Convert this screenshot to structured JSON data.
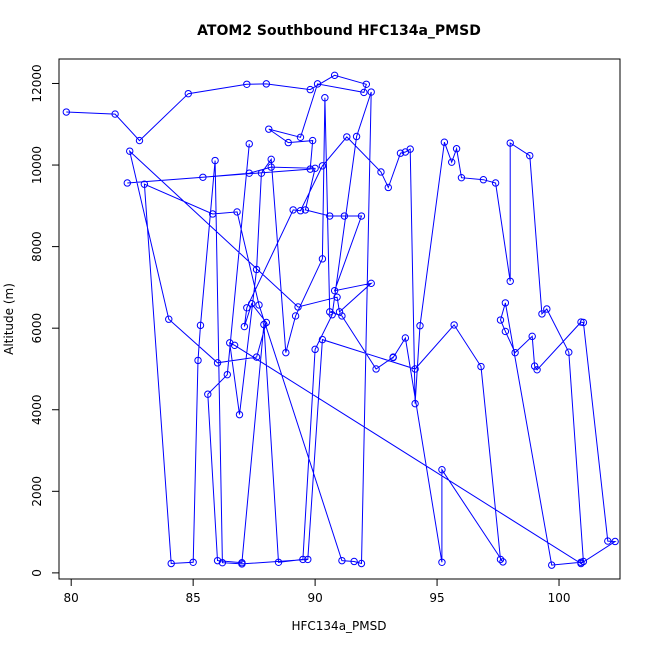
{
  "chart_data": {
    "type": "scatter",
    "title": "ATOM2 Southbound HFC134a_PMSD",
    "xlabel": "HFC134a_PMSD",
    "ylabel": "Altitude (m)",
    "xlim": [
      79.5,
      102.5
    ],
    "ylim": [
      -150,
      12600
    ],
    "x_ticks": [
      80,
      85,
      90,
      95,
      100
    ],
    "y_ticks": [
      0,
      2000,
      4000,
      6000,
      8000,
      10000,
      12000
    ],
    "grid": false,
    "legend": "none",
    "connected": true,
    "marker": "open-circle",
    "color": "#0000ff",
    "x": [
      79.8,
      81.8,
      82.8,
      84.8,
      87.2,
      88.0,
      89.8,
      90.8,
      92.1,
      92.0,
      90.1,
      89.4,
      88.1,
      88.9,
      89.9,
      89.8,
      82.3,
      85.4,
      87.3,
      88.2,
      90.0,
      89.6,
      90.6,
      91.2,
      91.9,
      90.8,
      92.3,
      91.0,
      90.9,
      89.3,
      82.4,
      84.0,
      86.0,
      87.6,
      88.0,
      87.4,
      87.1,
      87.2,
      89.1,
      89.4,
      90.3,
      91.3,
      92.7,
      93.0,
      93.5,
      93.7,
      93.9,
      94.1,
      94.3,
      95.3,
      95.6,
      95.8,
      96.0,
      96.9,
      97.4,
      98.0,
      98.0,
      98.8,
      99.3,
      99.5,
      100.4,
      101.0,
      100.9,
      99.7,
      97.8,
      97.6,
      97.8,
      98.2,
      98.9,
      99.0,
      99.1,
      100.9,
      101.0,
      102.0,
      102.3,
      100.9,
      86.7,
      86.5,
      86.9,
      87.6,
      87.8,
      88.2,
      88.8,
      89.2,
      90.3,
      90.4,
      90.6,
      91.1,
      92.5,
      93.2,
      93.2,
      93.7,
      95.2,
      95.2,
      97.7,
      97.6,
      96.8,
      95.7,
      94.1,
      90.3,
      89.7,
      87.0,
      86.2,
      85.9,
      85.3,
      85.2,
      85.0,
      84.1,
      83.0,
      85.8,
      86.8,
      87.7,
      91.1,
      91.6,
      91.9,
      92.3,
      91.7,
      90.7,
      90.0,
      89.5,
      88.5,
      87.9,
      87.0,
      86.0,
      85.6,
      86.4,
      87.3
    ],
    "y": [
      11300,
      11250,
      10600,
      11750,
      11980,
      11990,
      11850,
      12200,
      11980,
      11780,
      11990,
      10680,
      10880,
      10550,
      10600,
      9900,
      9560,
      9700,
      9800,
      9950,
      9920,
      8900,
      8750,
      8750,
      8750,
      6920,
      7100,
      6400,
      6760,
      6520,
      10340,
      6220,
      5150,
      5290,
      6140,
      6600,
      6040,
      6500,
      8900,
      8880,
      9980,
      10690,
      9830,
      9450,
      10290,
      10320,
      10390,
      4150,
      6060,
      10560,
      10070,
      10400,
      9690,
      9640,
      9560,
      7150,
      10540,
      10230,
      6350,
      6470,
      5410,
      280,
      260,
      190,
      6620,
      6200,
      5920,
      5400,
      5800,
      5070,
      4980,
      6150,
      6140,
      780,
      770,
      230,
      5580,
      5640,
      3880,
      7440,
      9800,
      10140,
      5400,
      6300,
      7700,
      11650,
      6400,
      6300,
      5000,
      5290,
      5280,
      5760,
      260,
      2530,
      270,
      330,
      5060,
      6080,
      5000,
      5720,
      330,
      220,
      250,
      10110,
      6070,
      5210,
      260,
      230,
      9530,
      8800,
      8850,
      6570,
      300,
      280,
      230,
      11790,
      10700,
      6330,
      5480,
      330,
      260,
      6090,
      250,
      300,
      4380,
      4860,
      10520
    ]
  }
}
